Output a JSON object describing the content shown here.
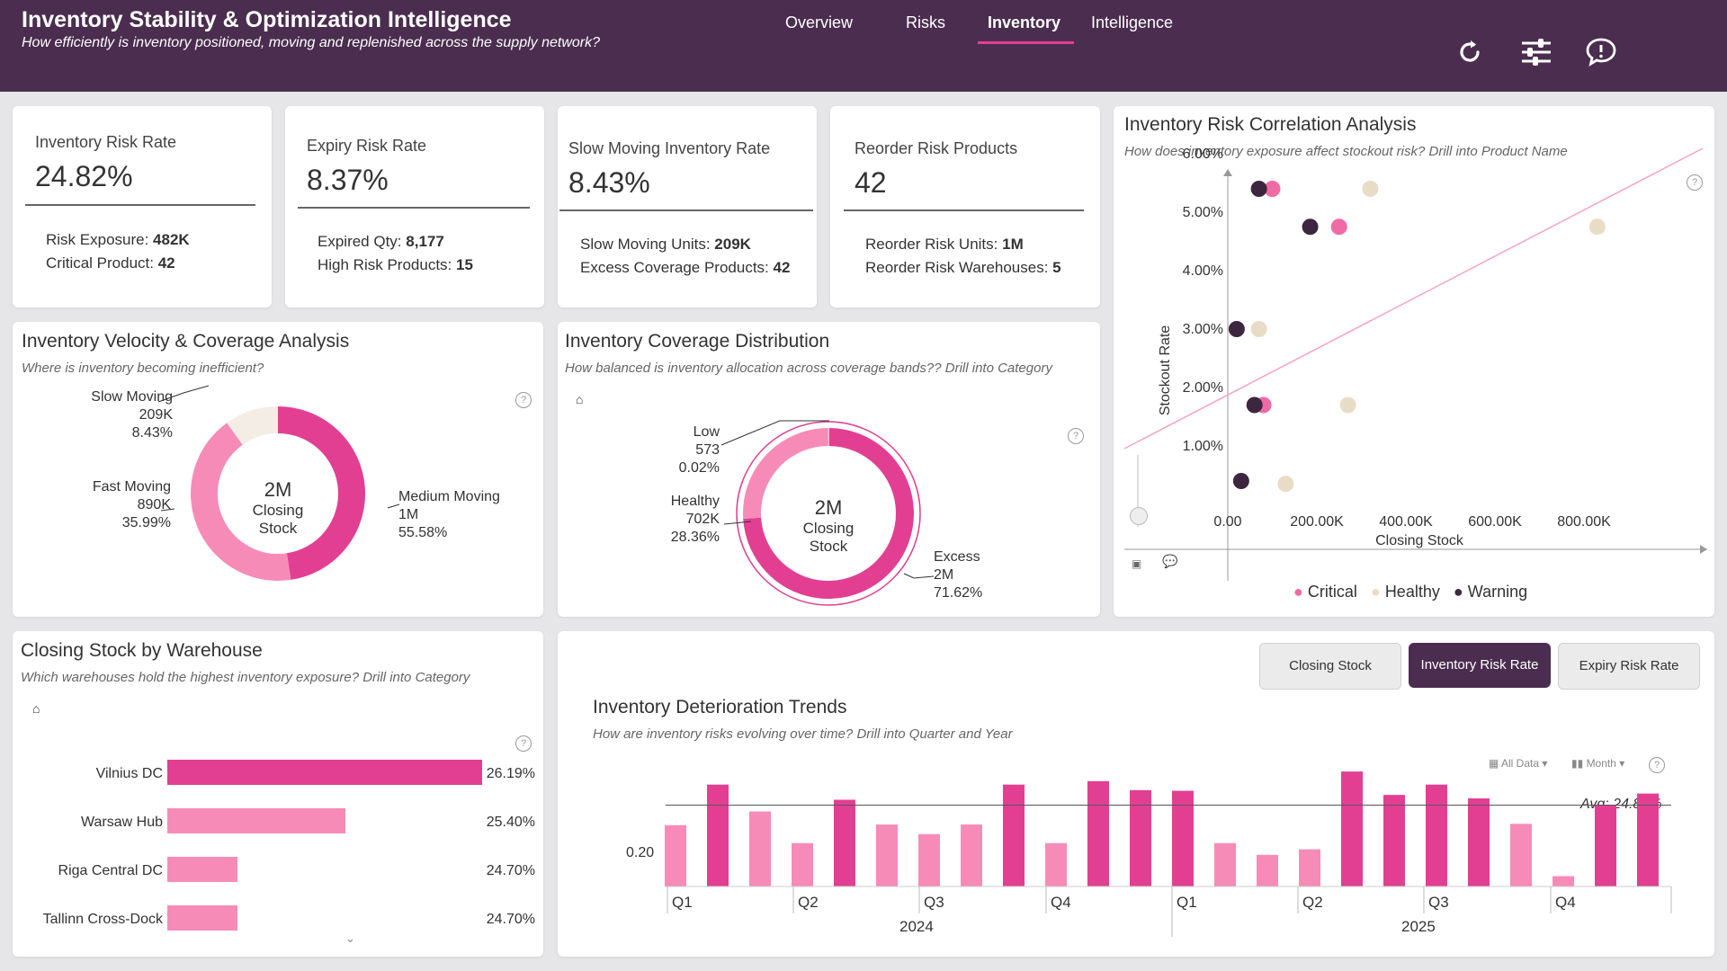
{
  "header": {
    "title": "Inventory Stability & Optimization Intelligence",
    "subtitle": "How efficiently is inventory positioned, moving and replenished across the supply network?",
    "nav": [
      "Overview",
      "Risks",
      "Inventory",
      "Intelligence"
    ],
    "active_nav": "Inventory",
    "icons": [
      "refresh-icon",
      "sliders-icon",
      "chat-icon"
    ]
  },
  "kpis": [
    {
      "label": "Inventory Risk Rate",
      "value": "24.82%",
      "sub1_label": "Risk Exposure: ",
      "sub1_value": "482K",
      "sub2_label": "Critical Product: ",
      "sub2_value": "42"
    },
    {
      "label": "Expiry Risk Rate",
      "value": "8.37%",
      "sub1_label": "Expired Qty: ",
      "sub1_value": "8,177",
      "sub2_label": "High Risk Products: ",
      "sub2_value": "15"
    },
    {
      "label": "Slow Moving Inventory Rate",
      "value": "8.43%",
      "sub1_label": "Slow Moving Units: ",
      "sub1_value": "209K",
      "sub2_label": "Excess Coverage Products: ",
      "sub2_value": "42"
    },
    {
      "label": "Reorder Risk Products",
      "value": "42",
      "sub1_label": "Reorder Risk Units: ",
      "sub1_value": "1M",
      "sub2_label": "Reorder Risk Warehouses: ",
      "sub2_value": "5"
    }
  ],
  "velocity": {
    "title": "Inventory Velocity & Coverage Analysis",
    "subtitle": "Where is inventory becoming inefficient?",
    "center_value": "2M",
    "center_label": "Closing Stock",
    "slices": [
      {
        "name": "Medium Moving",
        "value": "1M",
        "pct": "55.58%",
        "share": 55.58,
        "color": "#e23f93"
      },
      {
        "name": "Fast Moving",
        "value": "890K",
        "pct": "35.99%",
        "share": 35.99,
        "color": "#f78bb8"
      },
      {
        "name": "Slow Moving",
        "value": "209K",
        "pct": "8.43%",
        "share": 8.43,
        "color": "#f3ede6"
      }
    ]
  },
  "coverage": {
    "title": "Inventory Coverage Distribution",
    "subtitle": "How balanced is inventory allocation across coverage bands?? Drill into Category",
    "center_value": "2M",
    "center_label": "Closing Stock",
    "slices": [
      {
        "name": "Excess",
        "value": "2M",
        "pct": "71.62%",
        "share": 71.62,
        "color": "#e23f93"
      },
      {
        "name": "Healthy",
        "value": "702K",
        "pct": "28.36%",
        "share": 28.36,
        "color": "#f78bb8"
      },
      {
        "name": "Low",
        "value": "573",
        "pct": "0.02%",
        "share": 0.02,
        "color": "#f3ede6"
      }
    ]
  },
  "correlation": {
    "title": "Inventory Risk Correlation Analysis",
    "subtitle": "How does inventory exposure affect stockout risk? Drill into Product Name",
    "xlabel": "Closing Stock",
    "ylabel": "Stockout Rate",
    "x_ticks": [
      "0.00",
      "200.00K",
      "400.00K",
      "600.00K",
      "800.00K"
    ],
    "y_ticks": [
      "1.00%",
      "2.00%",
      "3.00%",
      "4.00%",
      "5.00%",
      "6.00%"
    ],
    "legend": [
      {
        "name": "Critical",
        "color": "#f06aa6"
      },
      {
        "name": "Healthy",
        "color": "#e9dcc6"
      },
      {
        "name": "Warning",
        "color": "#3d2640"
      }
    ]
  },
  "warehouse": {
    "title": "Closing Stock by Warehouse",
    "subtitle": "Which warehouses hold the highest inventory exposure? Drill into Category"
  },
  "trend": {
    "title": "Inventory Deterioration Trends",
    "subtitle": "How are inventory risks evolving over time? Drill into Quarter and Year",
    "toggles": [
      "Closing Stock",
      "Inventory Risk Rate",
      "Expiry Risk Rate"
    ],
    "active_toggle": "Inventory Risk Rate",
    "filter_all": "All Data",
    "filter_month": "Month",
    "avg_label": "Avg: 24.82%",
    "y_tick": "0.20",
    "quarters": [
      "Q1",
      "Q2",
      "Q3",
      "Q4",
      "Q1",
      "Q2",
      "Q3",
      "Q4"
    ],
    "years": [
      "2024",
      "2025"
    ]
  },
  "chart_data": [
    {
      "type": "pie",
      "title": "Inventory Velocity & Coverage Analysis",
      "categories": [
        "Medium Moving",
        "Fast Moving",
        "Slow Moving"
      ],
      "values": [
        1000000,
        890000,
        209000
      ],
      "percent": [
        55.58,
        35.99,
        8.43
      ]
    },
    {
      "type": "pie",
      "title": "Inventory Coverage Distribution",
      "categories": [
        "Excess",
        "Healthy",
        "Low"
      ],
      "values": [
        2000000,
        702000,
        573
      ],
      "percent": [
        71.62,
        28.36,
        0.02
      ]
    },
    {
      "type": "scatter",
      "title": "Inventory Risk Correlation Analysis",
      "xlabel": "Closing Stock",
      "ylabel": "Stockout Rate",
      "xlim": [
        0,
        1000000
      ],
      "ylim": [
        0,
        6.5
      ],
      "trendline": true,
      "series": [
        {
          "name": "Critical",
          "color": "#f06aa6",
          "points": [
            [
              100000,
              5.4
            ],
            [
              250000,
              4.75
            ],
            [
              80000,
              1.7
            ]
          ]
        },
        {
          "name": "Healthy",
          "color": "#e9dcc6",
          "points": [
            [
              320000,
              5.4
            ],
            [
              830000,
              4.75
            ],
            [
              70000,
              3.0
            ],
            [
              270000,
              1.7
            ],
            [
              130000,
              0.35
            ]
          ]
        },
        {
          "name": "Warning",
          "color": "#3d2640",
          "points": [
            [
              70000,
              5.4
            ],
            [
              185000,
              4.75
            ],
            [
              20000,
              3.0
            ],
            [
              60000,
              1.7
            ],
            [
              30000,
              0.4
            ]
          ]
        }
      ]
    },
    {
      "type": "bar",
      "title": "Closing Stock by Warehouse",
      "categories": [
        "Vilnius DC",
        "Warsaw Hub",
        "Riga Central DC",
        "Tallinn Cross-Dock"
      ],
      "values": [
        26.19,
        25.4,
        24.7,
        24.7
      ],
      "labels": [
        "26.19%",
        "25.40%",
        "24.70%",
        "24.70%"
      ],
      "colors": [
        "#e23f93",
        "#f78bb8",
        "#f78bb8",
        "#f78bb8"
      ]
    },
    {
      "type": "bar",
      "title": "Inventory Deterioration Trends",
      "x": [
        "2024-01",
        "2024-02",
        "2024-03",
        "2024-04",
        "2024-05",
        "2024-06",
        "2024-07",
        "2024-08",
        "2024-09",
        "2024-10",
        "2024-11",
        "2024-12",
        "2025-01",
        "2025-02",
        "2025-03",
        "2025-04",
        "2025-05",
        "2025-06",
        "2025-07",
        "2025-08",
        "2025-09",
        "2025-10",
        "2025-11",
        "2025-12"
      ],
      "values": [
        0.219,
        0.278,
        0.239,
        0.193,
        0.256,
        0.22,
        0.206,
        0.22,
        0.278,
        0.193,
        0.283,
        0.27,
        0.269,
        0.193,
        0.176,
        0.184,
        0.297,
        0.263,
        0.278,
        0.258,
        0.221,
        0.145,
        0.248,
        0.265
      ],
      "colors": [
        "#f78bb8",
        "#e23f93",
        "#f78bb8",
        "#f78bb8",
        "#e23f93",
        "#f78bb8",
        "#f78bb8",
        "#f78bb8",
        "#e23f93",
        "#f78bb8",
        "#e23f93",
        "#e23f93",
        "#e23f93",
        "#f78bb8",
        "#f78bb8",
        "#f78bb8",
        "#e23f93",
        "#e23f93",
        "#e23f93",
        "#e23f93",
        "#f78bb8",
        "#f78bb8",
        "#e23f93",
        "#e23f93"
      ],
      "avg": 0.2482,
      "ylim": [
        0.13,
        0.305
      ],
      "ytick": 0.2
    }
  ]
}
